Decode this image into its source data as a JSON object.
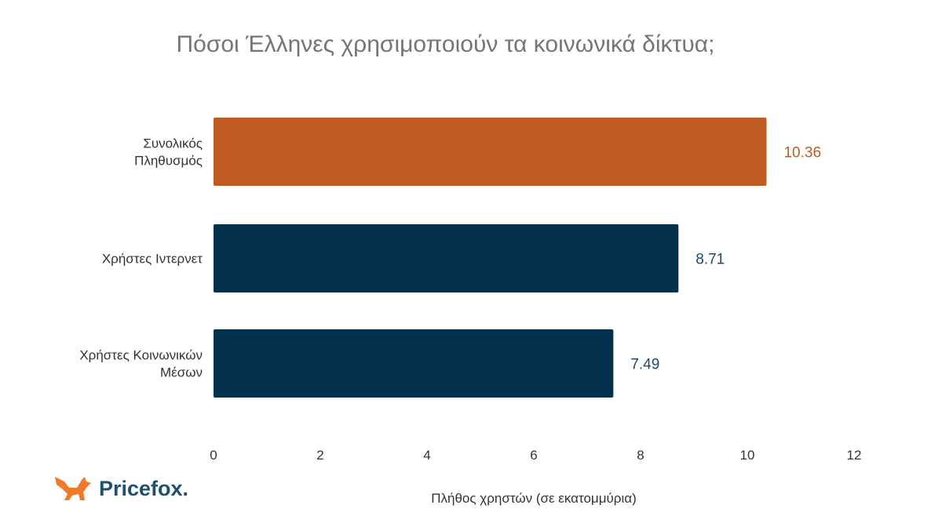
{
  "chart_data": {
    "type": "bar",
    "orientation": "horizontal",
    "title": "Πόσοι Έλληνες χρησιμοποιούν τα κοινωνικά δίκτυα;",
    "xlabel": "Πλήθος χρηστών (σε εκατομμύρια)",
    "ylabel": "",
    "categories": [
      [
        "Συνολικός",
        "Πληθυσμός"
      ],
      [
        "Χρήστες Ιντερνετ"
      ],
      [
        "Χρήστες Κοινωνικών",
        "Μέσων"
      ]
    ],
    "values": [
      10.36,
      8.71,
      7.49
    ],
    "value_labels": [
      "10.36",
      "8.71",
      "7.49"
    ],
    "colors": [
      "#bf5b20",
      "#04304d",
      "#04304d"
    ],
    "label_colors": [
      "#bf5b20",
      "#1f4a6b",
      "#1f4a6b"
    ],
    "xlim": [
      0,
      12
    ],
    "xticks": [
      0,
      2,
      4,
      6,
      8,
      10,
      12
    ],
    "grid": false,
    "legend": "none"
  },
  "logo": {
    "text": "Pricefox.",
    "brand_color": "#1d4f6e",
    "icon_color": "#f07a2a"
  }
}
